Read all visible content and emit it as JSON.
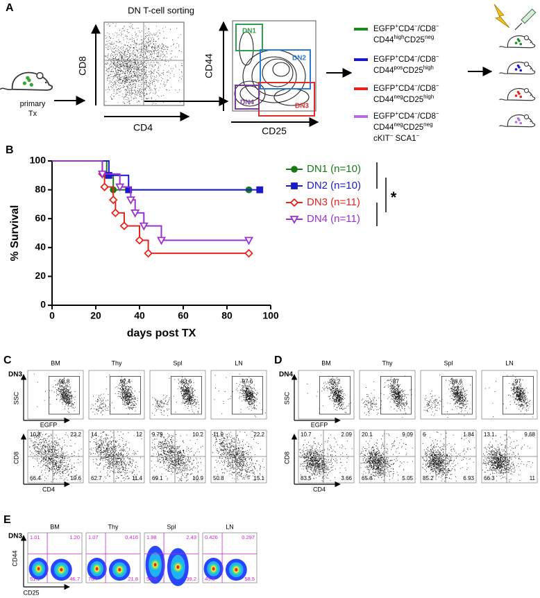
{
  "panel_a": {
    "label": "A",
    "title": "DN T-cell sorting",
    "mouse_label": [
      "primary",
      "Tx"
    ],
    "plot1": {
      "x_label": "CD4",
      "y_label": "CD8"
    },
    "plot2": {
      "x_label": "CD25",
      "y_label": "CD44",
      "gates": [
        {
          "label": "DN1",
          "color": "#2e9e4f"
        },
        {
          "label": "DN2",
          "color": "#2b7bd6"
        },
        {
          "label": "DN3",
          "color": "#e02b2b"
        },
        {
          "label": "DN4",
          "color": "#7a3c96"
        }
      ]
    },
    "populations": [
      {
        "color": "#1a8a1a",
        "lines": [
          [
            "EGFP",
            "+",
            "CD4",
            "−",
            "/CD8",
            "−"
          ],
          [
            "CD44",
            "high",
            "CD25",
            "neg"
          ]
        ]
      },
      {
        "color": "#1a1acc",
        "lines": [
          [
            "EGFP",
            "+",
            "CD4",
            "−",
            "/CD8",
            "−"
          ],
          [
            "CD44",
            "pos",
            "CD25",
            "high"
          ]
        ]
      },
      {
        "color": "#e8231c",
        "lines": [
          [
            "EGFP",
            "+",
            "CD4",
            "−",
            "/CD8",
            "−"
          ],
          [
            "CD44",
            "neg",
            "CD25",
            "high"
          ]
        ]
      },
      {
        "color": "#b070e0",
        "lines": [
          [
            "EGFP",
            "+",
            "CD4",
            "−",
            "/CD8",
            "−"
          ],
          [
            "CD44",
            "neg",
            "CD25",
            "neg"
          ],
          [
            "cKIT",
            "−",
            " SCA1",
            "−"
          ]
        ]
      }
    ]
  },
  "chart_data": {
    "type": "step",
    "panel_label": "B",
    "x_label": "days post TX",
    "y_label": "% Survival",
    "xlim": [
      0,
      100
    ],
    "xticks": [
      0,
      20,
      40,
      60,
      80,
      100
    ],
    "ylim": [
      0,
      100
    ],
    "yticks": [
      0,
      20,
      40,
      60,
      80,
      100
    ],
    "grid": false,
    "annotation": "*",
    "series": [
      {
        "name": "DN1 (n=10)",
        "color": "#1a7a1a",
        "marker": "circle",
        "x": [
          0,
          25,
          28,
          90
        ],
        "values": [
          100,
          90,
          80,
          80
        ]
      },
      {
        "name": "DN2 (n=10)",
        "color": "#1a1acc",
        "marker": "square",
        "x": [
          0,
          26,
          35,
          95
        ],
        "values": [
          100,
          90,
          80,
          80
        ]
      },
      {
        "name": "DN3 (n=11)",
        "color": "#e8231c",
        "marker": "diamond-open",
        "x": [
          0,
          23,
          24,
          28,
          29,
          33,
          40,
          44,
          90
        ],
        "values": [
          100,
          91,
          82,
          73,
          64,
          55,
          45,
          36,
          36
        ]
      },
      {
        "name": "DN4 (n=11)",
        "color": "#9b30d0",
        "marker": "triangle-down-open",
        "x": [
          0,
          23,
          31,
          36,
          38,
          42,
          50,
          90
        ],
        "values": [
          100,
          91,
          82,
          73,
          64,
          55,
          45,
          45
        ]
      }
    ]
  },
  "panel_c": {
    "label": "C",
    "row_label": "DN3",
    "tissues": [
      "BM",
      "Thy",
      "Spl",
      "LN"
    ],
    "top": {
      "x_label": "EGFP",
      "y_label": "SSC",
      "gate_values": [
        "98.8",
        "92.4",
        "83.6",
        "97.6"
      ]
    },
    "bottom": {
      "x_label": "CD4",
      "y_label": "CD8",
      "quadrants": [
        [
          "10.8",
          "23.2",
          "66.4",
          "19.6"
        ],
        [
          "14",
          "12",
          "62.7",
          "11.4"
        ],
        [
          "9.79",
          "10.2",
          "69.1",
          "10.9"
        ],
        [
          "11.9",
          "22.2",
          "50.8",
          "15.1"
        ]
      ]
    }
  },
  "panel_d": {
    "label": "D",
    "row_label": "DN4",
    "tissues": [
      "BM",
      "Thy",
      "Spl",
      "LN"
    ],
    "top": {
      "x_label": "EGFP",
      "y_label": "SSC",
      "gate_values": [
        "99.2",
        "87",
        "88.6",
        "97"
      ]
    },
    "bottom": {
      "x_label": "CD4",
      "y_label": "CD8",
      "quadrants": [
        [
          "10.7",
          "2.09",
          "83.5",
          "3.66"
        ],
        [
          "20.1",
          "9.09",
          "65.8",
          "5.05"
        ],
        [
          "6",
          "1.84",
          "85.2",
          "6.93"
        ],
        [
          "13.1",
          "9.68",
          "66.3",
          "11"
        ]
      ]
    }
  },
  "panel_e": {
    "label": "E",
    "row_label": "DN3",
    "tissues": [
      "BM",
      "Thy",
      "Spl",
      "LN"
    ],
    "x_label": "CD25",
    "y_label": "CD44",
    "quadrants": [
      [
        "1.01",
        "1.20",
        "51.1",
        "46.7"
      ],
      [
        "1.07",
        "0.416",
        "76.7",
        "21.8"
      ],
      [
        "1.98",
        "2.43",
        "56.4",
        "39.2"
      ],
      [
        "0.426",
        "0.297",
        "40.8",
        "58.5"
      ]
    ]
  }
}
